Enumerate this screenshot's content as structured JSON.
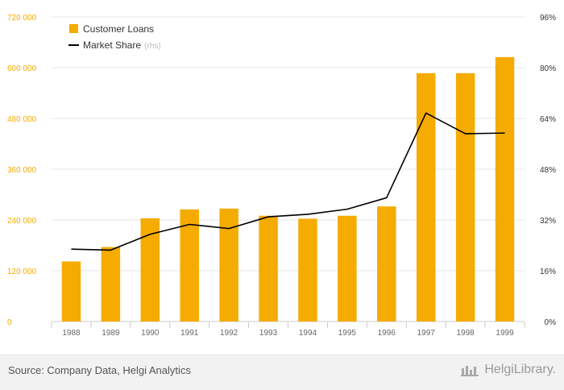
{
  "chart_data": {
    "type": "bar",
    "categories": [
      "1988",
      "1989",
      "1990",
      "1991",
      "1992",
      "1993",
      "1994",
      "1995",
      "1996",
      "1997",
      "1998",
      "1999"
    ],
    "series": [
      {
        "name": "Customer Loans",
        "type": "bar",
        "axis": "left",
        "values": [
          142000,
          176000,
          244000,
          265000,
          267000,
          250000,
          243000,
          250000,
          272000,
          587000,
          587000,
          625000
        ]
      },
      {
        "name": "Market Share",
        "type": "line",
        "axis": "right",
        "values": [
          22.8,
          22.5,
          27.5,
          30.6,
          29.3,
          33.0,
          33.8,
          35.4,
          39.0,
          65.7,
          59.2,
          59.4
        ]
      }
    ],
    "legend": {
      "position": "top-left",
      "items": [
        {
          "label": "Customer Loans",
          "suffix": ""
        },
        {
          "label": "Market Share",
          "suffix": "(rhs)"
        }
      ]
    },
    "left_axis": {
      "ylim": [
        0,
        720000
      ],
      "ticks": [
        0,
        120000,
        240000,
        360000,
        480000,
        600000,
        720000
      ],
      "tick_labels": [
        "0",
        "120 000",
        "240 000",
        "360 000",
        "480 000",
        "600 000",
        "720 000"
      ]
    },
    "right_axis": {
      "ylim": [
        0,
        96
      ],
      "ticks": [
        0,
        16,
        32,
        48,
        64,
        80,
        96
      ],
      "tick_labels": [
        "0%",
        "16%",
        "32%",
        "48%",
        "64%",
        "80%",
        "96%"
      ]
    },
    "grid": true
  },
  "colors": {
    "bar": "#f5ab00",
    "line": "#000000",
    "left_tick": "#f5ab00",
    "right_tick": "#333333",
    "x_tick": "#666666",
    "grid": "#e6e6e6",
    "axis": "#cccccc",
    "legend_suffix": "#bbbbbb"
  },
  "footer": {
    "source": "Source: Company Data, Helgi Analytics",
    "logo_text": "HelgiLibrary."
  },
  "icons": {
    "logo": "helgilibrary-logo-icon"
  }
}
